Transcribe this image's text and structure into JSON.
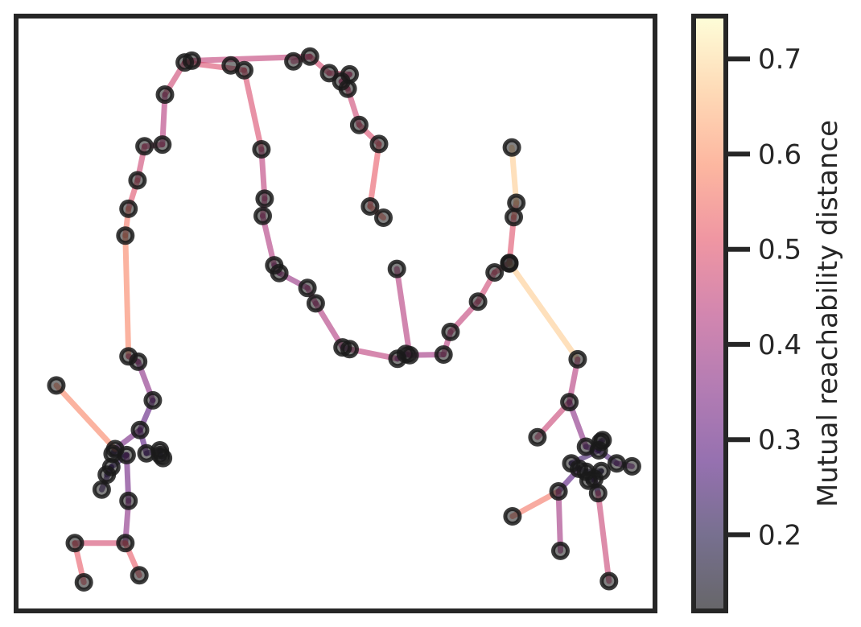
{
  "chart_data": {
    "type": "scatter",
    "description_type": "minimum-spanning-tree",
    "xaxis_visible": false,
    "yaxis_visible": false,
    "xlim": [
      0,
      100
    ],
    "ylim": [
      0,
      100
    ],
    "grid": false,
    "colorbar": {
      "label": "Mutual reachability distance",
      "colormap": [
        "#000004",
        "#1c1044",
        "#4f127b",
        "#812581",
        "#b5367a",
        "#e55064",
        "#fb8761",
        "#fec287",
        "#fcfdbf"
      ],
      "range": [
        0.12,
        0.745
      ],
      "ticks": [
        {
          "value": 0.2,
          "label": "0.2"
        },
        {
          "value": 0.3,
          "label": "0.3"
        },
        {
          "value": 0.4,
          "label": "0.4"
        },
        {
          "value": 0.5,
          "label": "0.5"
        },
        {
          "value": 0.6,
          "label": "0.6"
        },
        {
          "value": 0.7,
          "label": "0.7"
        }
      ]
    },
    "points": [
      [
        46.0,
        93.2
      ],
      [
        43.4,
        92.4
      ],
      [
        33.6,
        91.7
      ],
      [
        27.5,
        92.5
      ],
      [
        26.4,
        92.2
      ],
      [
        35.7,
        90.9
      ],
      [
        49.0,
        90.4
      ],
      [
        50.9,
        89.0
      ],
      [
        51.9,
        87.8
      ],
      [
        52.2,
        90.2
      ],
      [
        53.7,
        81.7
      ],
      [
        56.8,
        78.5
      ],
      [
        55.4,
        68.0
      ],
      [
        57.5,
        66.1
      ],
      [
        23.3,
        86.8
      ],
      [
        22.9,
        78.4
      ],
      [
        20.1,
        78.1
      ],
      [
        19.0,
        72.4
      ],
      [
        17.6,
        67.6
      ],
      [
        17.1,
        63.1
      ],
      [
        38.4,
        77.6
      ],
      [
        38.9,
        69.3
      ],
      [
        38.6,
        66.4
      ],
      [
        40.4,
        58.1
      ],
      [
        41.2,
        56.8
      ],
      [
        45.6,
        54.3
      ],
      [
        46.9,
        51.7
      ],
      [
        51.1,
        44.3
      ],
      [
        52.2,
        44.0
      ],
      [
        59.6,
        57.5
      ],
      [
        59.7,
        42.4
      ],
      [
        61.6,
        43.0
      ],
      [
        61.0,
        43.2
      ],
      [
        66.9,
        43.1
      ],
      [
        68.0,
        46.9
      ],
      [
        72.3,
        52.0
      ],
      [
        74.9,
        56.9
      ],
      [
        77.2,
        58.5
      ],
      [
        77.9,
        66.2
      ],
      [
        78.3,
        68.6
      ],
      [
        77.6,
        77.9
      ],
      [
        77.2,
        58.4
      ],
      [
        87.9,
        42.3
      ],
      [
        86.6,
        35.1
      ],
      [
        81.6,
        29.2
      ],
      [
        91.5,
        28.4
      ],
      [
        91.8,
        28.7
      ],
      [
        89.2,
        27.6
      ],
      [
        91.2,
        27.0
      ],
      [
        94.0,
        24.8
      ],
      [
        96.4,
        24.3
      ],
      [
        86.9,
        24.8
      ],
      [
        88.1,
        23.9
      ],
      [
        89.2,
        23.4
      ],
      [
        91.6,
        23.5
      ],
      [
        90.5,
        22.2
      ],
      [
        89.6,
        21.9
      ],
      [
        91.1,
        19.8
      ],
      [
        84.9,
        20.1
      ],
      [
        77.7,
        15.9
      ],
      [
        85.2,
        10.1
      ],
      [
        92.8,
        5.0
      ],
      [
        17.6,
        42.8
      ],
      [
        19.1,
        41.9
      ],
      [
        21.4,
        35.4
      ],
      [
        19.4,
        30.4
      ],
      [
        15.5,
        27.2
      ],
      [
        15.1,
        26.4
      ],
      [
        17.3,
        26.2
      ],
      [
        14.9,
        24.2
      ],
      [
        14.2,
        22.9
      ],
      [
        20.4,
        26.5
      ],
      [
        22.5,
        27.0
      ],
      [
        22.6,
        26.2
      ],
      [
        23.0,
        25.7
      ],
      [
        13.4,
        20.4
      ],
      [
        17.6,
        18.5
      ],
      [
        17.1,
        11.4
      ],
      [
        9.2,
        11.4
      ],
      [
        10.6,
        4.8
      ],
      [
        19.3,
        6.0
      ],
      [
        6.3,
        37.9
      ]
    ],
    "edges": [
      [
        0,
        1,
        0.45
      ],
      [
        0,
        3,
        0.45
      ],
      [
        3,
        4,
        0.48
      ],
      [
        4,
        5,
        0.49
      ],
      [
        0,
        6,
        0.48
      ],
      [
        6,
        9,
        0.47
      ],
      [
        9,
        7,
        0.44
      ],
      [
        7,
        8,
        0.45
      ],
      [
        8,
        10,
        0.47
      ],
      [
        10,
        11,
        0.49
      ],
      [
        11,
        12,
        0.52
      ],
      [
        12,
        13,
        0.55
      ],
      [
        4,
        14,
        0.47
      ],
      [
        14,
        15,
        0.43
      ],
      [
        15,
        16,
        0.45
      ],
      [
        16,
        17,
        0.47
      ],
      [
        17,
        18,
        0.5
      ],
      [
        18,
        19,
        0.56
      ],
      [
        19,
        62,
        0.58
      ],
      [
        5,
        20,
        0.49
      ],
      [
        20,
        21,
        0.44
      ],
      [
        21,
        22,
        0.44
      ],
      [
        22,
        23,
        0.42
      ],
      [
        23,
        24,
        0.38
      ],
      [
        24,
        25,
        0.38
      ],
      [
        25,
        26,
        0.42
      ],
      [
        26,
        27,
        0.42
      ],
      [
        27,
        28,
        0.36
      ],
      [
        28,
        30,
        0.44
      ],
      [
        30,
        32,
        0.35
      ],
      [
        32,
        31,
        0.35
      ],
      [
        29,
        31,
        0.43
      ],
      [
        31,
        33,
        0.4
      ],
      [
        33,
        34,
        0.43
      ],
      [
        34,
        35,
        0.45
      ],
      [
        35,
        36,
        0.47
      ],
      [
        36,
        37,
        0.49
      ],
      [
        37,
        38,
        0.5
      ],
      [
        38,
        39,
        0.55
      ],
      [
        39,
        40,
        0.68
      ],
      [
        37,
        42,
        0.68
      ],
      [
        42,
        43,
        0.43
      ],
      [
        43,
        44,
        0.46
      ],
      [
        43,
        47,
        0.36
      ],
      [
        47,
        48,
        0.3
      ],
      [
        48,
        45,
        0.28
      ],
      [
        45,
        46,
        0.26
      ],
      [
        48,
        49,
        0.25
      ],
      [
        49,
        50,
        0.32
      ],
      [
        48,
        51,
        0.24
      ],
      [
        51,
        52,
        0.2
      ],
      [
        52,
        53,
        0.17
      ],
      [
        53,
        54,
        0.17
      ],
      [
        54,
        55,
        0.18
      ],
      [
        55,
        56,
        0.2
      ],
      [
        55,
        57,
        0.27
      ],
      [
        52,
        58,
        0.28
      ],
      [
        58,
        59,
        0.56
      ],
      [
        58,
        60,
        0.4
      ],
      [
        57,
        61,
        0.46
      ],
      [
        62,
        63,
        0.45
      ],
      [
        63,
        64,
        0.36
      ],
      [
        64,
        65,
        0.29
      ],
      [
        65,
        71,
        0.28
      ],
      [
        65,
        66,
        0.33
      ],
      [
        66,
        67,
        0.22
      ],
      [
        67,
        68,
        0.24
      ],
      [
        68,
        69,
        0.22
      ],
      [
        69,
        70,
        0.22
      ],
      [
        71,
        72,
        0.24
      ],
      [
        72,
        73,
        0.22
      ],
      [
        73,
        74,
        0.22
      ],
      [
        69,
        75,
        0.23
      ],
      [
        68,
        76,
        0.32
      ],
      [
        76,
        77,
        0.36
      ],
      [
        77,
        78,
        0.48
      ],
      [
        78,
        79,
        0.52
      ],
      [
        77,
        80,
        0.52
      ],
      [
        66,
        81,
        0.58
      ]
    ]
  }
}
